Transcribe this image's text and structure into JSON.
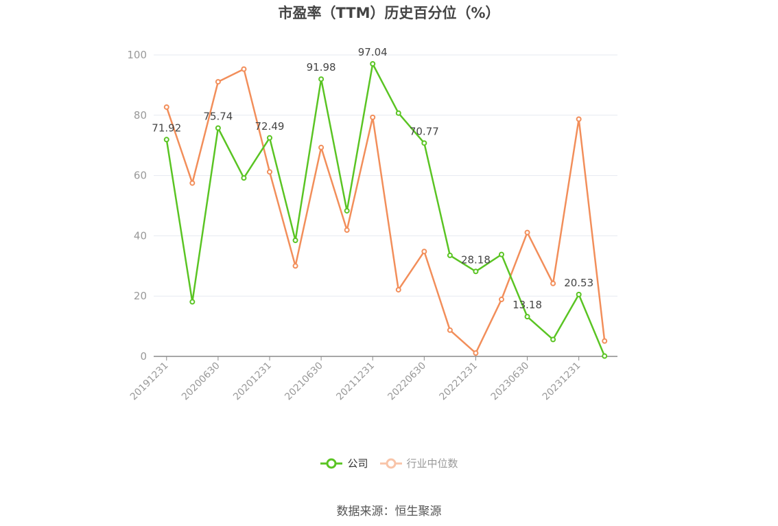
{
  "chart_data": {
    "type": "line",
    "title": "市盈率（TTM）历史百分位（%）",
    "xlabel": "",
    "ylabel": "",
    "ylim": [
      0,
      100
    ],
    "yticks": [
      0,
      20,
      40,
      60,
      80,
      100
    ],
    "grid": true,
    "legend_position": "bottom",
    "x": [
      "20191231",
      "20200331",
      "20200630",
      "20200930",
      "20201231",
      "20210331",
      "20210630",
      "20210930",
      "20211231",
      "20220331",
      "20220630",
      "20220930",
      "20221231",
      "20230331",
      "20230630",
      "20230930",
      "20231231",
      "20240331"
    ],
    "x_tick_labels": [
      "20191231",
      "20200630",
      "20201231",
      "20210630",
      "20211231",
      "20220630",
      "20221231",
      "20230630",
      "20231231"
    ],
    "series": [
      {
        "name": "公司",
        "color": "#5ac423",
        "values": [
          71.92,
          18.1,
          75.74,
          59.2,
          72.49,
          38.5,
          91.98,
          48.3,
          97.04,
          80.7,
          70.77,
          33.5,
          28.18,
          33.8,
          13.18,
          5.6,
          20.53,
          0.1
        ],
        "labels": [
          "71.92",
          "",
          "75.74",
          "",
          "72.49",
          "",
          "91.98",
          "",
          "97.04",
          "",
          "70.77",
          "",
          "28.18",
          "",
          "13.18",
          "",
          "20.53",
          ""
        ]
      },
      {
        "name": "行业中位数",
        "color": "#f28e5a",
        "values": [
          82.7,
          57.5,
          91.1,
          95.3,
          61.2,
          30.0,
          69.3,
          41.9,
          79.3,
          22.1,
          34.8,
          8.7,
          1.1,
          18.9,
          41.1,
          24.2,
          78.7,
          5.1
        ]
      }
    ]
  },
  "source": "数据来源：恒生聚源"
}
